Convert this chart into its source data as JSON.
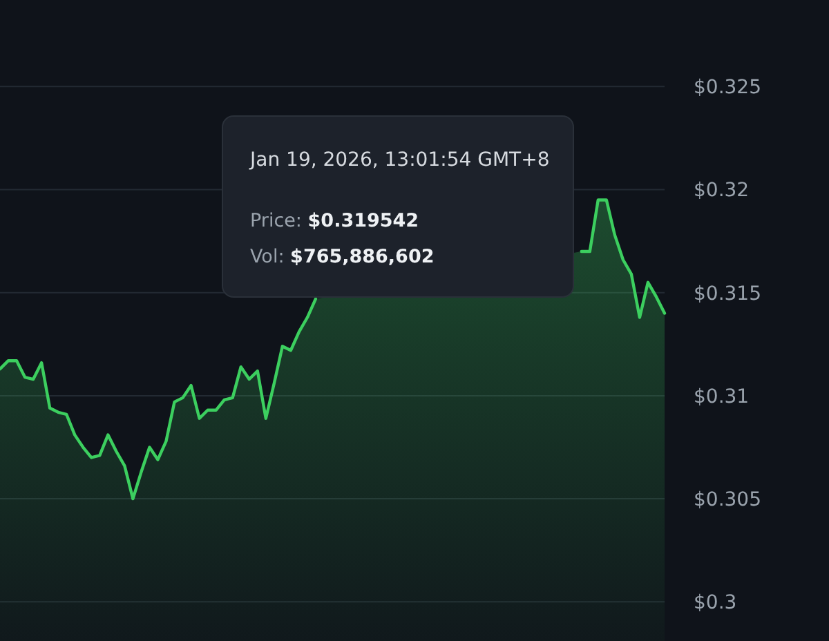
{
  "chart_data": {
    "type": "area",
    "categories": [
      null,
      null,
      null,
      null,
      null,
      null,
      null,
      null,
      null,
      null,
      null,
      null,
      null,
      null,
      null,
      null,
      null,
      null,
      null,
      null,
      null,
      null,
      null,
      null,
      null,
      null,
      null,
      null,
      null,
      null,
      null,
      null,
      null,
      null,
      null,
      null,
      null,
      null,
      null,
      null,
      null,
      null,
      null,
      null,
      null,
      null,
      null,
      null,
      null,
      null,
      null,
      null,
      null,
      null,
      null,
      null,
      null,
      null,
      null,
      null,
      null,
      null,
      null,
      null,
      null,
      null,
      null,
      null,
      null,
      null,
      null,
      null,
      null,
      null,
      null,
      null,
      null,
      null,
      null,
      null,
      null
    ],
    "series": [
      {
        "color": "#3ccf5f",
        "values": [
          0.3113,
          0.3117,
          0.3117,
          0.3109,
          0.3108,
          0.3116,
          0.3094,
          0.3092,
          0.3091,
          0.3081,
          0.3075,
          0.307,
          0.3071,
          0.3081,
          0.3073,
          0.3066,
          0.305,
          0.3063,
          0.3075,
          0.3069,
          0.3078,
          0.3097,
          0.3099,
          0.3105,
          0.3089,
          0.3093,
          0.3093,
          0.3098,
          0.3099,
          0.3114,
          0.3108,
          0.3112,
          0.3089,
          0.3106,
          0.3124,
          0.3122,
          0.3131,
          0.3138,
          0.3147,
          null,
          null,
          null,
          null,
          null,
          null,
          null,
          null,
          null,
          null,
          null,
          null,
          null,
          null,
          null,
          null,
          null,
          null,
          null,
          null,
          null,
          null,
          null,
          null,
          null,
          null,
          null,
          null,
          null,
          null,
          null,
          0.317,
          0.317,
          0.3195,
          0.3195,
          0.3178,
          0.3166,
          0.3159,
          0.3138,
          0.3155,
          0.3148,
          0.314
        ]
      }
    ],
    "ylim": [
      0.2981,
      0.3292
    ],
    "yticks": [
      {
        "value": 0.3,
        "label": "$0.3"
      },
      {
        "value": 0.305,
        "label": "$0.305"
      },
      {
        "value": 0.31,
        "label": "$0.31"
      },
      {
        "value": 0.315,
        "label": "$0.315"
      },
      {
        "value": 0.32,
        "label": "$0.32"
      },
      {
        "value": 0.325,
        "label": "$0.325"
      }
    ],
    "grid": "y",
    "tick_labels": "y",
    "annotations": [
      "Jan 19, 2026, 13:01:54 GMT+8",
      "Price: $0.319542",
      "Vol: $765,886,602"
    ]
  }
}
